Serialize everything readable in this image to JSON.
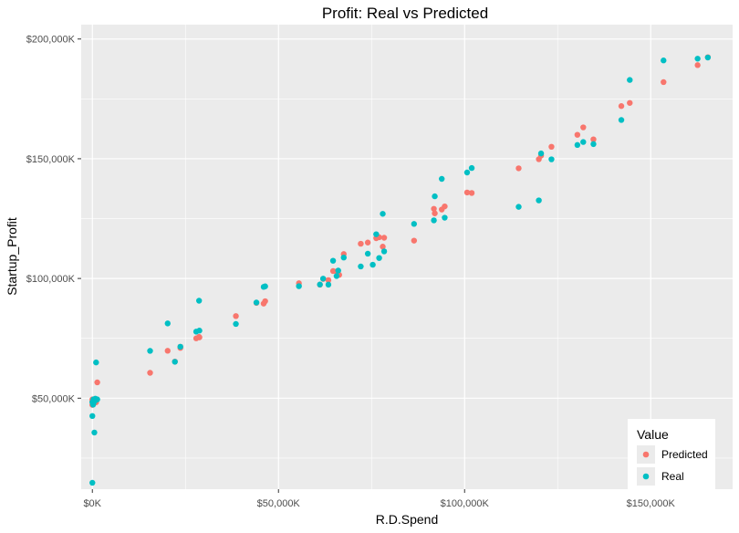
{
  "chart_data": {
    "type": "scatter",
    "title": "Profit: Real vs Predicted",
    "xlabel": "R.D.Spend",
    "ylabel": "Startup_Profit",
    "xlim": [
      -3000,
      172000
    ],
    "ylim": [
      12000,
      206000
    ],
    "x_ticks": [
      0,
      50000,
      100000,
      150000
    ],
    "x_tick_labels": [
      "$0K",
      "$50,000K",
      "$100,000K",
      "$150,000K"
    ],
    "y_ticks": [
      50000,
      100000,
      150000,
      200000
    ],
    "y_tick_labels": [
      "$50,000K",
      "$100,000K",
      "$150,000K",
      "$200,000K"
    ],
    "legend_title": "Value",
    "legend_position": "bottom-right",
    "grid": true,
    "series": [
      {
        "name": "Predicted",
        "color": "#F8766D",
        "points": [
          [
            165349,
            192400
          ],
          [
            162598,
            189100
          ],
          [
            153442,
            182000
          ],
          [
            144372,
            173300
          ],
          [
            142107,
            172000
          ],
          [
            131877,
            163100
          ],
          [
            134615,
            158100
          ],
          [
            130298,
            160000
          ],
          [
            120543,
            151300
          ],
          [
            123335,
            155000
          ],
          [
            119943,
            149800
          ],
          [
            114524,
            146000
          ],
          [
            101913,
            135700
          ],
          [
            100672,
            135900
          ],
          [
            94658,
            130100
          ],
          [
            93864,
            128800
          ],
          [
            91992,
            127200
          ],
          [
            91749,
            129100
          ],
          [
            86420,
            115800
          ],
          [
            78389,
            117000
          ],
          [
            77044,
            117200
          ],
          [
            78013,
            113300
          ],
          [
            76254,
            116800
          ],
          [
            73994,
            115000
          ],
          [
            72108,
            114500
          ],
          [
            67533,
            110200
          ],
          [
            65605,
            102900
          ],
          [
            64665,
            103100
          ],
          [
            66051,
            101800
          ],
          [
            61136,
            97400
          ],
          [
            63408,
            99300
          ],
          [
            55494,
            98000
          ],
          [
            62000,
            99800
          ],
          [
            66300,
            101500
          ],
          [
            46014,
            89500
          ],
          [
            46426,
            90500
          ],
          [
            44070,
            89800
          ],
          [
            38558,
            84300
          ],
          [
            28754,
            75400
          ],
          [
            27893,
            75000
          ],
          [
            28663,
            75600
          ],
          [
            23641,
            71500
          ],
          [
            23640,
            71000
          ],
          [
            22178,
            65300
          ],
          [
            20229,
            69800
          ],
          [
            15506,
            60600
          ],
          [
            1316,
            56600
          ],
          [
            1000,
            48300
          ],
          [
            542,
            48000
          ],
          [
            300,
            49000
          ],
          [
            0,
            47200
          ],
          [
            0,
            48800
          ],
          [
            0,
            49500
          ],
          [
            800,
            49200
          ]
        ]
      },
      {
        "name": "Real",
        "color": "#00BFC4",
        "points": [
          [
            162597,
            191792
          ],
          [
            165349,
            192261
          ],
          [
            153441,
            191050
          ],
          [
            144372,
            182902
          ],
          [
            142107,
            166188
          ],
          [
            131876,
            156991
          ],
          [
            134615,
            156123
          ],
          [
            130298,
            155753
          ],
          [
            120542,
            152212
          ],
          [
            123334,
            149760
          ],
          [
            101913,
            146122
          ],
          [
            100671,
            144259
          ],
          [
            93863,
            141585
          ],
          [
            91992,
            134307
          ],
          [
            119943,
            132602
          ],
          [
            114523,
            129917
          ],
          [
            78013,
            126993
          ],
          [
            94657,
            125371
          ],
          [
            91749,
            124267
          ],
          [
            86419,
            122777
          ],
          [
            76253,
            118474
          ],
          [
            78389,
            111313
          ],
          [
            73994,
            110352
          ],
          [
            67532,
            108734
          ],
          [
            77044,
            108552
          ],
          [
            64664,
            107404
          ],
          [
            75328,
            105733
          ],
          [
            72107,
            105008
          ],
          [
            66051,
            103282
          ],
          [
            65605,
            101004
          ],
          [
            61994,
            99937
          ],
          [
            61136,
            97483
          ],
          [
            63408,
            97427
          ],
          [
            55493,
            96778
          ],
          [
            46426,
            96712
          ],
          [
            46014,
            96479
          ],
          [
            28663,
            90708
          ],
          [
            44069,
            89949
          ],
          [
            20229,
            81229
          ],
          [
            38558,
            81005
          ],
          [
            28754,
            78239
          ],
          [
            27892,
            77798
          ],
          [
            23640,
            71498
          ],
          [
            15505,
            69758
          ],
          [
            22177,
            65200
          ],
          [
            1000,
            64926
          ],
          [
            1315,
            49490
          ],
          [
            0,
            42559
          ],
          [
            542,
            35673
          ],
          [
            0,
            14681
          ],
          [
            300,
            49500
          ],
          [
            500,
            48500
          ],
          [
            800,
            49800
          ],
          [
            0,
            48300
          ],
          [
            200,
            47300
          ]
        ]
      }
    ]
  }
}
